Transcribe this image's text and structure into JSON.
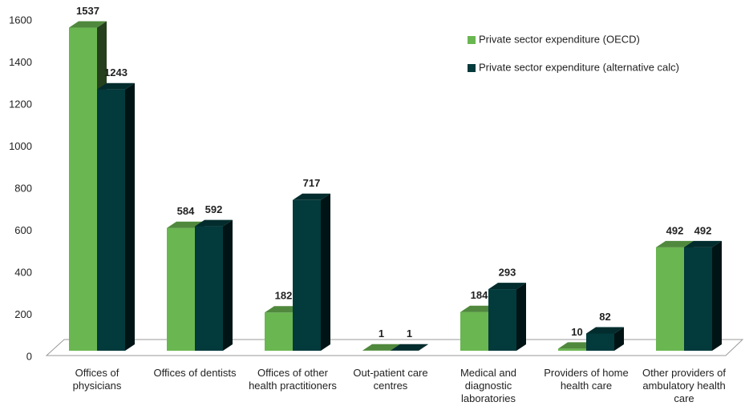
{
  "chart_data": {
    "type": "bar3d",
    "categories": [
      "Offices of physicians",
      "Offices of dentists",
      "Offices of other health practitioners",
      "Out-patient care centres",
      "Medical and diagnostic laboratories",
      "Providers of home health care",
      "Other providers of ambulatory health care"
    ],
    "series": [
      {
        "name": "Private sector expenditure (OECD)",
        "color": "#6ab651",
        "values": [
          1537,
          584,
          182,
          1,
          184,
          10,
          492
        ]
      },
      {
        "name": "Private sector expenditure (alternative calc)",
        "color": "#033a3c",
        "values": [
          1243,
          592,
          717,
          1,
          293,
          82,
          492
        ]
      }
    ],
    "ylim": [
      0,
      1600
    ],
    "yticks": [
      0,
      200,
      400,
      600,
      800,
      1000,
      1200,
      1400,
      1600
    ],
    "legend": "top-right"
  }
}
